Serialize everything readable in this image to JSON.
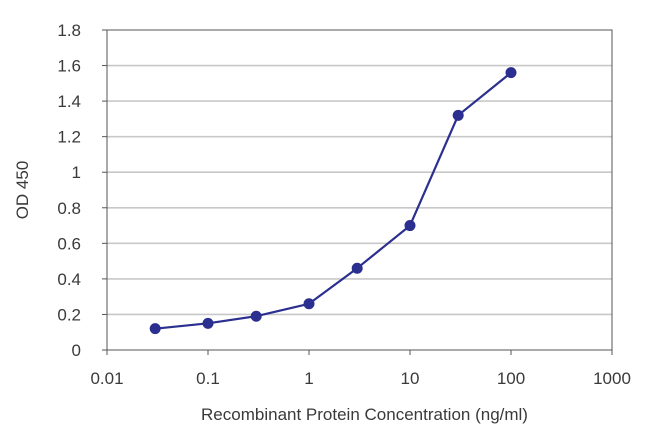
{
  "chart_data": {
    "type": "line",
    "title": "",
    "xlabel": "Recombinant Protein Concentration (ng/ml)",
    "ylabel": "OD 450",
    "x_scale": "log",
    "xlim": [
      0.01,
      1000
    ],
    "ylim": [
      0,
      1.8
    ],
    "x_ticks": [
      "0.01",
      "0.1",
      "1",
      "10",
      "100",
      "1000"
    ],
    "y_ticks": [
      "0",
      "0.2",
      "0.4",
      "0.6",
      "0.8",
      "1",
      "1.2",
      "1.4",
      "1.6",
      "1.8"
    ],
    "grid": "horizontal",
    "series": [
      {
        "color": "#2b2f8f",
        "marker": "circle",
        "x": [
          0.03,
          0.1,
          0.3,
          1,
          3,
          10,
          30,
          100
        ],
        "y": [
          0.12,
          0.15,
          0.19,
          0.26,
          0.46,
          0.7,
          1.32,
          1.56
        ]
      }
    ],
    "colors": {
      "series": "#2b2f8f",
      "gridline": "#c8c8c8",
      "axis": "#555555",
      "text": "#3a3a3a"
    }
  }
}
